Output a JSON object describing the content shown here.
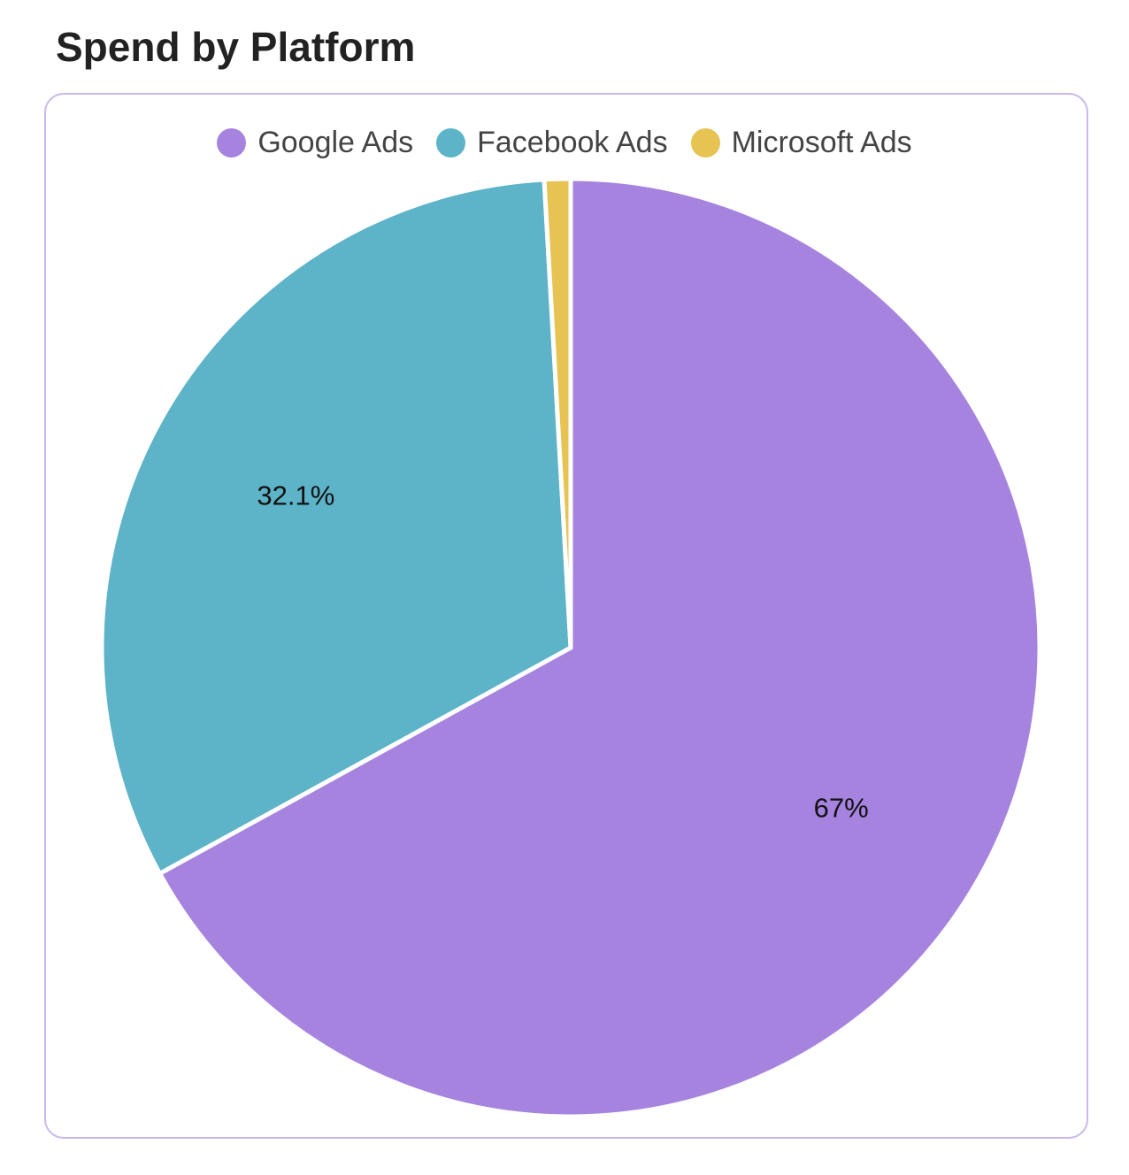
{
  "title": "Spend by Platform",
  "chart_data": {
    "type": "pie",
    "title": "Spend by Platform",
    "legend_position": "top",
    "categories": [
      "Google Ads",
      "Facebook Ads",
      "Microsoft Ads"
    ],
    "values": [
      67,
      32.1,
      0.9
    ],
    "unit": "%",
    "data_labels": [
      "67%",
      "32.1%",
      ""
    ],
    "colors": [
      "#a683df",
      "#5db3c7",
      "#e7c353"
    ],
    "slice_border_color": "#ffffff"
  }
}
